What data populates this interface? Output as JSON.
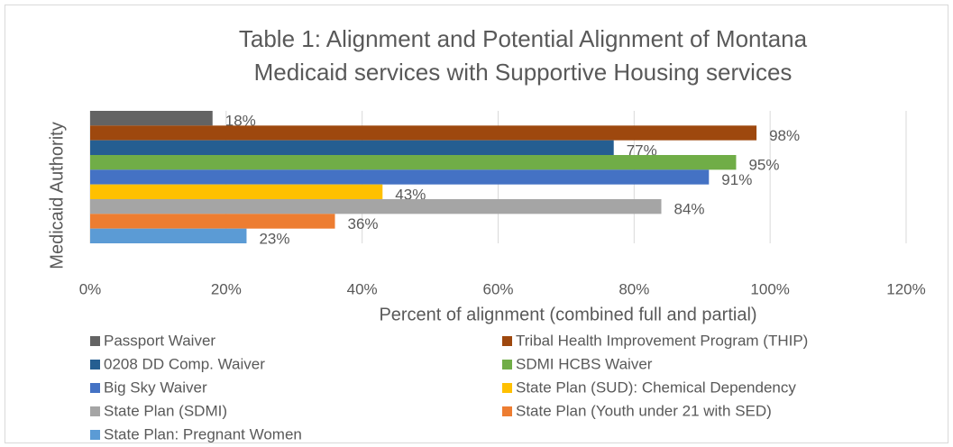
{
  "chart_data": {
    "type": "bar",
    "orientation": "horizontal",
    "title": [
      "Table 1: Alignment and Potential Alignment of Montana",
      "Medicaid services with Supportive Housing services"
    ],
    "x_label": "Percent of alignment (combined full and partial)",
    "y_label": "Medicaid Authority",
    "xlim": [
      0,
      120
    ],
    "xticks": [
      {
        "value": 0,
        "label": "0%"
      },
      {
        "value": 20,
        "label": "20%"
      },
      {
        "value": 40,
        "label": "40%"
      },
      {
        "value": 60,
        "label": "60%"
      },
      {
        "value": 80,
        "label": "80%"
      },
      {
        "value": 100,
        "label": "100%"
      },
      {
        "value": 120,
        "label": "120%"
      }
    ],
    "grid": true,
    "legend": "bottom",
    "series": [
      {
        "name": "Passport Waiver",
        "color": "#636363",
        "values": [
          18
        ],
        "value_labels": [
          "18%"
        ]
      },
      {
        "name": "Tribal Health Improvement Program (THIP)",
        "color": "#9e480e",
        "values": [
          98
        ],
        "value_labels": [
          "98%"
        ]
      },
      {
        "name": "0208 DD Comp. Waiver",
        "color": "#255e91",
        "values": [
          77
        ],
        "value_labels": [
          "77%"
        ]
      },
      {
        "name": "SDMI HCBS Waiver",
        "color": "#70ad47",
        "values": [
          95
        ],
        "value_labels": [
          "95%"
        ]
      },
      {
        "name": "Big Sky Waiver",
        "color": "#4472c4",
        "values": [
          91
        ],
        "value_labels": [
          "91%"
        ]
      },
      {
        "name": "State Plan (SUD): Chemical Dependency",
        "color": "#ffc000",
        "values": [
          43
        ],
        "value_labels": [
          "43%"
        ]
      },
      {
        "name": "State Plan (SDMI)",
        "color": "#a5a5a5",
        "values": [
          84
        ],
        "value_labels": [
          "84%"
        ]
      },
      {
        "name": "State Plan (Youth under 21 with SED)",
        "color": "#ed7d31",
        "values": [
          36
        ],
        "value_labels": [
          "36%"
        ]
      },
      {
        "name": "State Plan: Pregnant Women",
        "color": "#5b9bd5",
        "values": [
          23
        ],
        "value_labels": [
          "23%"
        ]
      }
    ]
  }
}
